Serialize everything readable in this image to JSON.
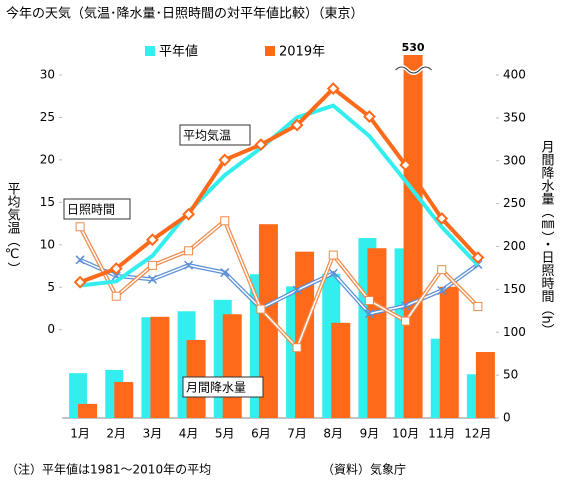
{
  "chart_data": {
    "type": "combo",
    "title": "今年の天気（気温･降水量･日照時間の対平年値比較）（東京）",
    "ylabel": "平均気温（℃）",
    "y2label": "月間降水量（㎜）・日照時間（h）",
    "categories": [
      "1月",
      "2月",
      "3月",
      "4月",
      "5月",
      "6月",
      "7月",
      "8月",
      "9月",
      "10月",
      "11月",
      "12月"
    ],
    "ylim": [
      -10.4,
      30
    ],
    "yticks": [
      0,
      5,
      10,
      15,
      20,
      25,
      30
    ],
    "y2lim": [
      0,
      400
    ],
    "y2ticks": [
      0,
      50,
      100,
      150,
      200,
      250,
      300,
      350,
      400
    ],
    "labels": {
      "temperature": "平均気温",
      "sunshine": "日照時間",
      "precipitation": "月間降水量"
    },
    "series": [
      {
        "name": "平年値",
        "color": "#33eeee",
        "sunshine_color": "#5b8fd6",
        "precipitation": [
          52.3,
          56.1,
          117.5,
          124.5,
          137.8,
          167.7,
          153.5,
          168.2,
          209.9,
          197.8,
          92.5,
          51.0
        ],
        "temperature": [
          5.2,
          5.7,
          8.7,
          13.9,
          18.2,
          21.4,
          25.0,
          26.4,
          22.8,
          17.5,
          12.1,
          7.6
        ],
        "sunshine": [
          184.5,
          165.8,
          161.7,
          178.3,
          169.6,
          127.7,
          149.1,
          168.8,
          121.7,
          130.9,
          148.7,
          179.1
        ]
      },
      {
        "name": "2019年",
        "color": "#ff6a1a",
        "sunshine_color": "#f08a4b",
        "precipitation": [
          16.5,
          42.0,
          118.0,
          91.0,
          121.0,
          226.0,
          194.0,
          111.0,
          198.0,
          530,
          153.0,
          77.0
        ],
        "temperature": [
          5.6,
          7.2,
          10.6,
          13.6,
          20.0,
          21.8,
          24.1,
          28.4,
          25.1,
          19.4,
          13.1,
          8.5
        ],
        "sunshine": [
          223,
          142,
          178,
          195,
          230,
          127,
          82,
          190,
          137,
          113,
          173,
          130
        ]
      }
    ],
    "notes": [
      "（注）平年値は1981～2010年の平均",
      "（資料）気象庁"
    ]
  }
}
